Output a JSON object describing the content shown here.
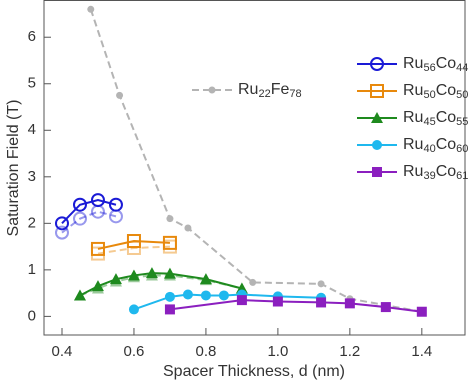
{
  "chart_data": {
    "type": "line",
    "xlabel": "Spacer Thickness, d (nm)",
    "ylabel": "Saturation Field (T)",
    "xlim": [
      0.35,
      1.52
    ],
    "ylim": [
      -0.4,
      6.8
    ],
    "xticks": [
      0.4,
      0.6,
      0.8,
      {
        "value": 1,
        "label": "1.0"
      },
      1.2,
      1.4
    ],
    "yticks": [
      0,
      1,
      2,
      3,
      4,
      5,
      6
    ],
    "series": [
      {
        "name": "Ru22Fe78",
        "color": "#b4b4b4",
        "marker": "dot",
        "dashed": true,
        "x": [
          0.48,
          0.56,
          0.7,
          0.75,
          0.93,
          1.12,
          1.2,
          1.4
        ],
        "values": [
          6.6,
          4.75,
          2.1,
          1.9,
          0.73,
          0.7,
          0.38,
          0.1
        ]
      },
      {
        "name": "Ru56Co44",
        "color": "#1a1ad6",
        "marker": "circle-open",
        "x": [
          0.4,
          0.45,
          0.5,
          0.55
        ],
        "values": [
          2.0,
          2.4,
          2.5,
          2.4
        ],
        "dashed_values": [
          1.8,
          2.1,
          2.25,
          2.15
        ]
      },
      {
        "name": "Ru50Co50",
        "color": "#e8890c",
        "marker": "square-open",
        "x": [
          0.5,
          0.6,
          0.7
        ],
        "values": [
          1.45,
          1.62,
          1.58
        ],
        "dashed_values": [
          1.35,
          1.47,
          1.5
        ]
      },
      {
        "name": "Ru45Co55",
        "color": "#1e8a1e",
        "marker": "triangle",
        "x": [
          0.45,
          0.5,
          0.55,
          0.6,
          0.65,
          0.7,
          0.8,
          0.9
        ],
        "values": [
          0.45,
          0.65,
          0.8,
          0.88,
          0.93,
          0.92,
          0.8,
          0.6
        ],
        "dashed_values": [
          0.45,
          0.6,
          0.75,
          0.84,
          0.88,
          0.88,
          0.78,
          0.6
        ]
      },
      {
        "name": "Ru40Co60",
        "color": "#1fb8ee",
        "marker": "circle",
        "x": [
          0.6,
          0.7,
          0.75,
          0.8,
          0.85,
          0.9,
          1.0,
          1.12
        ],
        "values": [
          0.15,
          0.42,
          0.47,
          0.45,
          0.45,
          0.47,
          0.43,
          0.4
        ]
      },
      {
        "name": "Ru39Co61",
        "color": "#8b1fbf",
        "marker": "square",
        "x": [
          0.7,
          0.9,
          1.0,
          1.12,
          1.2,
          1.3,
          1.4
        ],
        "values": [
          0.15,
          0.35,
          0.32,
          0.3,
          0.28,
          0.2,
          0.1
        ]
      }
    ]
  }
}
